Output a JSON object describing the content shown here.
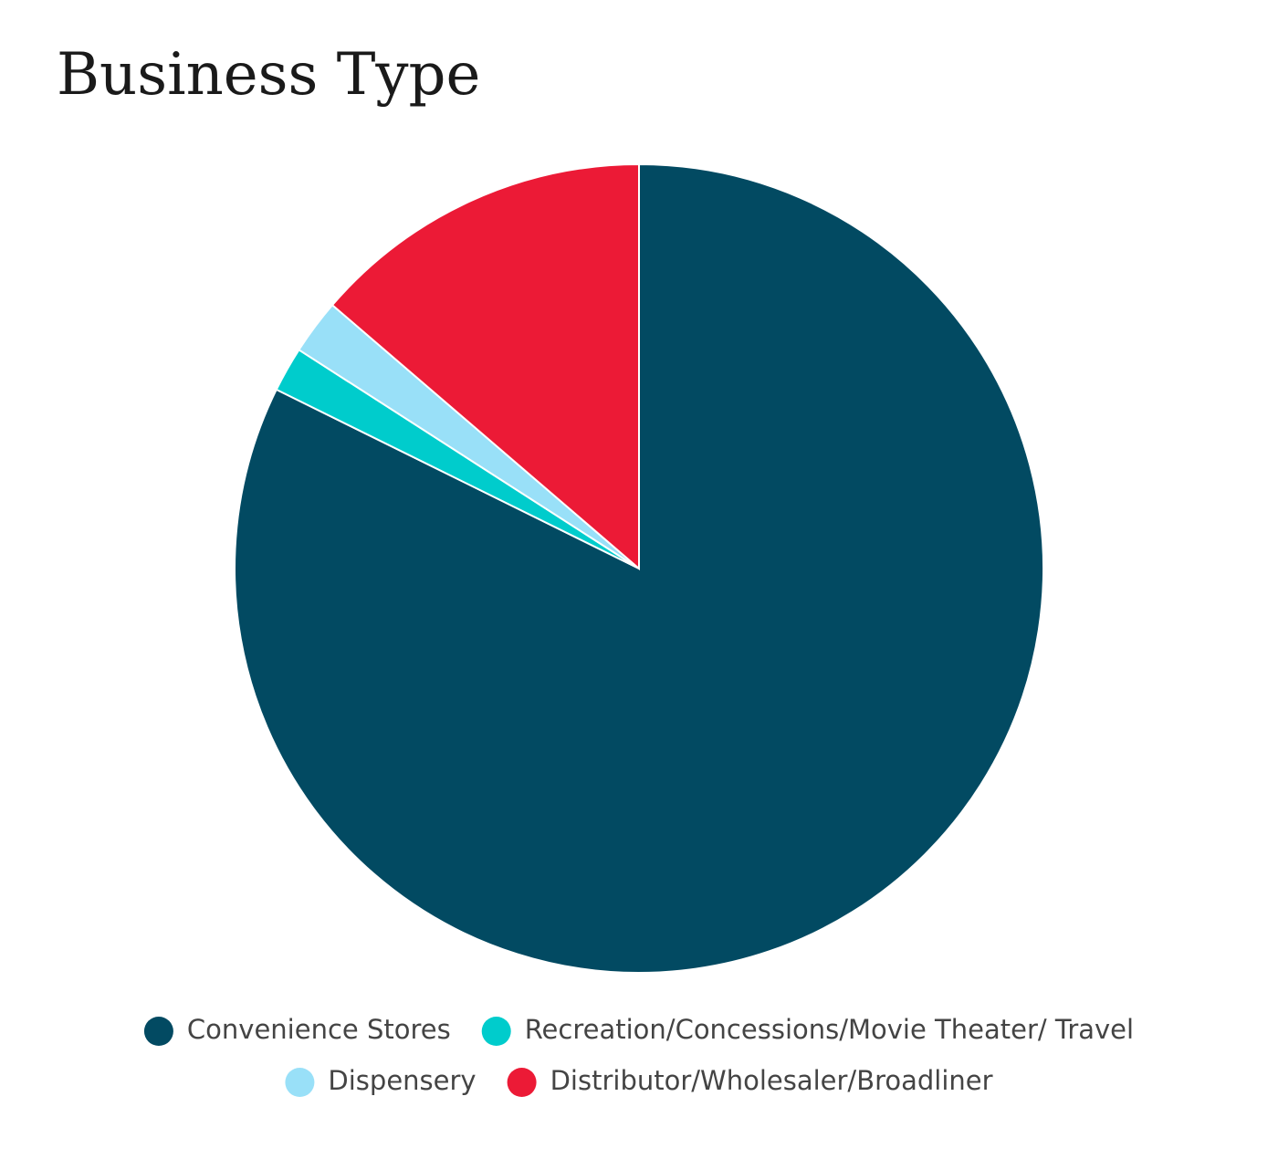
{
  "chart_data": {
    "type": "pie",
    "title": "Business Type",
    "categories": [
      "Convenience Stores",
      "Recreation/Concessions/Movie Theater/ Travel",
      "Dispensery",
      "Distributor/Wholesaler/Broadliner"
    ],
    "values": [
      82.3,
      1.8,
      2.2,
      13.7
    ],
    "colors": [
      "#024a62",
      "#00cccc",
      "#99e0f8",
      "#ec1a36"
    ]
  }
}
